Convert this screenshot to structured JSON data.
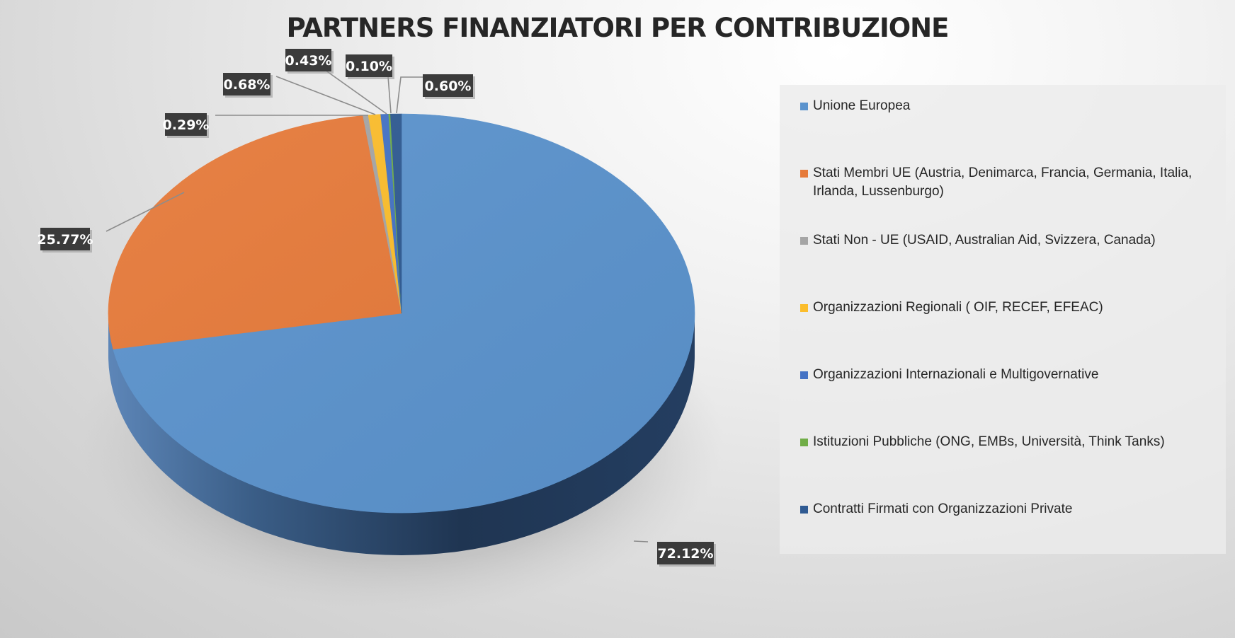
{
  "chart_data": {
    "type": "pie",
    "title": "PARTNERS FINANZIATORI PER CONTRIBUZIONE",
    "legend_position": "right",
    "three_d": true,
    "series": [
      {
        "values": [
          72.12,
          25.77,
          0.29,
          0.68,
          0.43,
          0.1,
          0.6
        ],
        "labels": [
          "72.12%",
          "25.77%",
          "0.29%",
          "0.68%",
          "0.43%",
          "0.10%",
          "0.60%"
        ]
      }
    ],
    "categories": [
      "Unione Europea",
      "Stati Membri UE (Austria, Denimarca, Francia, Germania, Italia, Irlanda, Lussenburgo)",
      "Stati Non - UE  (USAID, Australian Aid, Svizzera, Canada)",
      "Organizzazioni Regionali  ( OIF, RECEF, EFEAC)",
      "Organizzazioni Internazionali e Multigovernative",
      "Istituzioni Pubbliche (ONG, EMBs, Università, Think Tanks)",
      "Contratti Firmati con Organizzazioni Private"
    ],
    "colors": [
      "#5b93cd",
      "#e67a3a",
      "#a5a5a5",
      "#fbbd2c",
      "#4472c4",
      "#70ad47",
      "#2f5a92"
    ]
  }
}
